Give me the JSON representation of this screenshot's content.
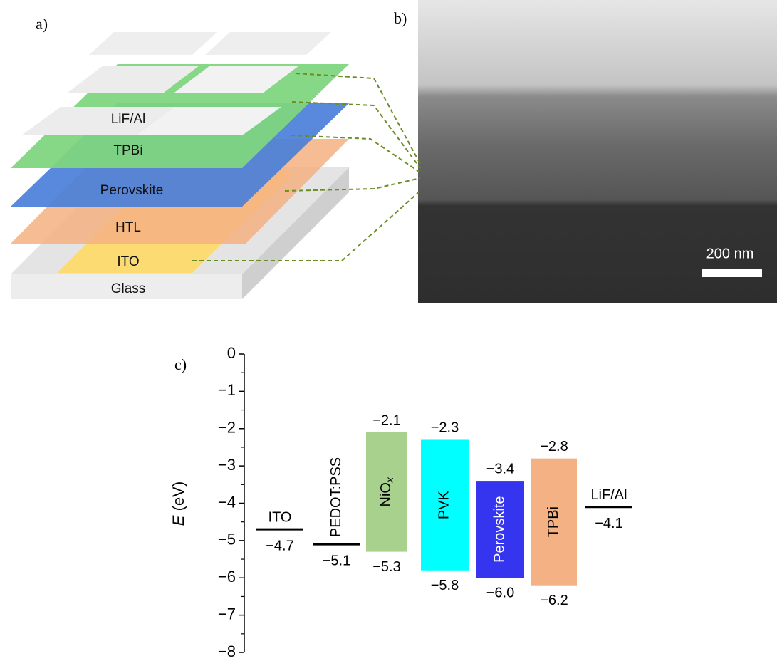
{
  "panel_a": {
    "label": "a)",
    "layers": [
      "LiF/Al",
      "TPBi",
      "Perovskite",
      "HTL",
      "ITO",
      "Glass"
    ]
  },
  "panel_b": {
    "label": "b)",
    "scale_bar": "200 nm"
  },
  "panel_c": {
    "label": "c)",
    "y_label_var": "E",
    "y_label_unit": "(eV)",
    "ylim": [
      -8,
      0
    ],
    "yticks": [
      {
        "value": -8,
        "label": "−8"
      },
      {
        "value": -7,
        "label": "−7"
      },
      {
        "value": -6,
        "label": "−6"
      },
      {
        "value": -5,
        "label": "−5"
      },
      {
        "value": -4,
        "label": "−4"
      },
      {
        "value": -3,
        "label": "−3"
      },
      {
        "value": -2,
        "label": "−2"
      },
      {
        "value": -1,
        "label": "−1"
      },
      0
    ],
    "yminorticks": [
      -7.5,
      -6.5,
      -5.5,
      -4.5,
      -3.5,
      -2.5,
      -1.5,
      -0.5
    ],
    "levels": [
      {
        "name": "ITO",
        "color": "#000000",
        "values": [
          -4.7
        ],
        "value_labels": [
          "−4.7"
        ]
      },
      {
        "name": "PEDOT:PSS",
        "color": "#000000",
        "label_rotated": true,
        "values": [
          -5.1
        ],
        "value_labels": [
          "−5.1"
        ]
      },
      {
        "name": "NiO",
        "name_sub": "x",
        "color": "#a9d18e",
        "label_color": "#000000",
        "values": [
          -2.1,
          -5.3
        ],
        "value_labels": [
          "−2.1",
          "−5.3"
        ]
      },
      {
        "name": "PVK",
        "color": "#00ffff",
        "label_color": "#000000",
        "values": [
          -2.3,
          -5.8
        ],
        "value_labels": [
          "−2.3",
          "−5.8"
        ]
      },
      {
        "name": "Perovskite",
        "color": "#3535f0",
        "label_color": "#ffffff",
        "values": [
          -3.4,
          -6.0
        ],
        "value_labels": [
          "−3.4",
          "−6.0"
        ]
      },
      {
        "name": "TPBi",
        "color": "#f4b183",
        "label_color": "#000000",
        "values": [
          -2.8,
          -6.2
        ],
        "value_labels": [
          "−2.8",
          "−6.2"
        ]
      },
      {
        "name": "LiF/Al",
        "color": "#000000",
        "values": [
          -4.1
        ],
        "value_labels": [
          "−4.1"
        ]
      }
    ]
  }
}
